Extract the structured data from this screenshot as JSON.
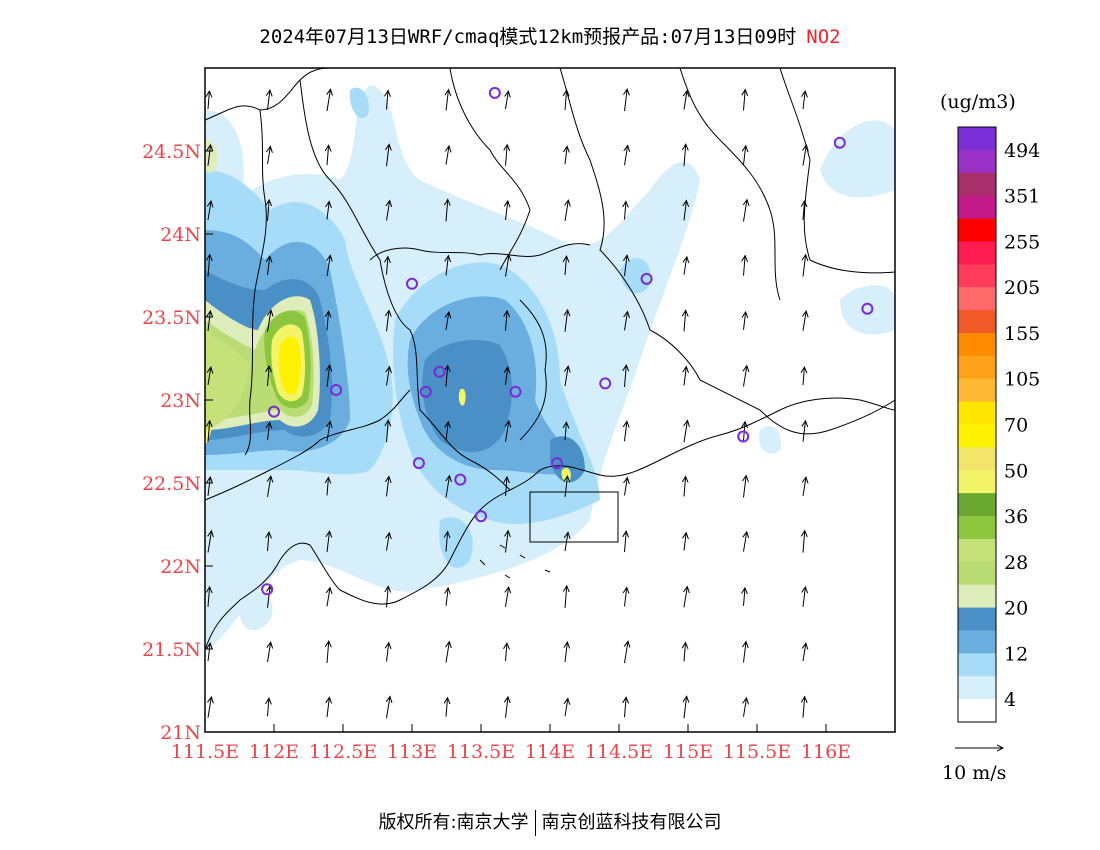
{
  "title": {
    "text": "2024年07月13日WRF/cmaq模式12km预报产品:07月13日09时",
    "pollutant": "NO2"
  },
  "axes": {
    "x_ticks": [
      "111.5E",
      "112E",
      "112.5E",
      "113E",
      "113.5E",
      "114E",
      "114.5E",
      "115E",
      "115.5E",
      "116E"
    ],
    "y_ticks": [
      "24.5N",
      "24N",
      "23.5N",
      "23N",
      "22.5N",
      "22N",
      "21.5N",
      "21N"
    ],
    "lon_range": [
      111.5,
      116.5
    ],
    "lat_range": [
      21,
      25
    ]
  },
  "colorbar": {
    "unit": "(ug/m3)",
    "labels": [
      "494",
      "351",
      "255",
      "205",
      "155",
      "105",
      "70",
      "50",
      "36",
      "28",
      "20",
      "12",
      "4"
    ],
    "colors": [
      "#7b2fd6",
      "#9a32c8",
      "#a8306a",
      "#c4198a",
      "#ff0000",
      "#ff1a4f",
      "#ff3d5a",
      "#ff6b6b",
      "#f05a28",
      "#ff8c00",
      "#ffa21a",
      "#ffb833",
      "#ffe600",
      "#fff200",
      "#f3e56a",
      "#f4f46a",
      "#6aa832",
      "#8cc63f",
      "#c6e07a",
      "#b9dd74",
      "#dfedbb",
      "#4a90c6",
      "#6aaee0",
      "#a6dcf7",
      "#d7eefb",
      "#ffffff"
    ]
  },
  "wind_legend": {
    "label": "10 m/s"
  },
  "stations": [
    {
      "lon": 113.6,
      "lat": 24.85
    },
    {
      "lon": 116.1,
      "lat": 24.55
    },
    {
      "lon": 113.0,
      "lat": 23.7
    },
    {
      "lon": 114.7,
      "lat": 23.73
    },
    {
      "lon": 116.3,
      "lat": 23.55
    },
    {
      "lon": 113.2,
      "lat": 23.17
    },
    {
      "lon": 112.45,
      "lat": 23.06
    },
    {
      "lon": 113.1,
      "lat": 23.05
    },
    {
      "lon": 113.75,
      "lat": 23.05
    },
    {
      "lon": 114.4,
      "lat": 23.1
    },
    {
      "lon": 112.0,
      "lat": 22.93
    },
    {
      "lon": 115.4,
      "lat": 22.78
    },
    {
      "lon": 113.05,
      "lat": 22.62
    },
    {
      "lon": 113.35,
      "lat": 22.52
    },
    {
      "lon": 114.05,
      "lat": 22.62
    },
    {
      "lon": 113.5,
      "lat": 22.3
    },
    {
      "lon": 111.95,
      "lat": 21.86
    }
  ],
  "footer": {
    "left": "版权所有:南京大学",
    "right": "南京创蓝科技有限公司"
  }
}
